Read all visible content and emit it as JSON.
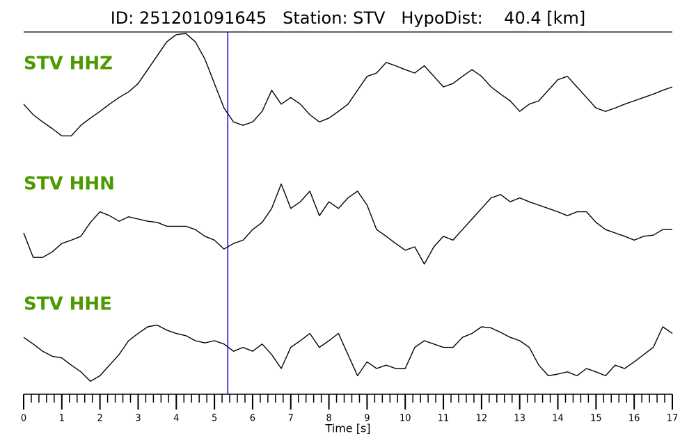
{
  "chart_data": {
    "type": "line",
    "title": "ID: 251201091645   Station: STV   HypoDist:    40.4 [km]",
    "xlabel": "Time [s]",
    "x": [
      0,
      0.25,
      0.5,
      0.75,
      1,
      1.25,
      1.5,
      1.75,
      2,
      2.25,
      2.5,
      2.75,
      3,
      3.25,
      3.5,
      3.75,
      4,
      4.25,
      4.5,
      4.75,
      5,
      5.25,
      5.5,
      5.75,
      6,
      6.25,
      6.5,
      6.75,
      7,
      7.25,
      7.5,
      7.75,
      8,
      8.25,
      8.5,
      8.75,
      9,
      9.25,
      9.5,
      9.75,
      10,
      10.25,
      10.5,
      10.75,
      11,
      11.25,
      11.5,
      11.75,
      12,
      12.25,
      12.5,
      12.75,
      13,
      13.25,
      13.5,
      13.75,
      14,
      14.25,
      14.5,
      14.75,
      15,
      15.25,
      15.5,
      15.75,
      16,
      16.25,
      16.5,
      16.75,
      17
    ],
    "xlim": [
      0,
      17
    ],
    "xticks": [
      0,
      1,
      2,
      3,
      4,
      5,
      6,
      7,
      8,
      9,
      10,
      11,
      12,
      13,
      14,
      15,
      16,
      17
    ],
    "minor_tick_step": 0.2,
    "ylim": [
      -1,
      1
    ],
    "pick_time": 5.35,
    "pick_color": "#0000cc",
    "label_color": "#4c9a00",
    "series": [
      {
        "name": "STV HHZ",
        "color": "#000000",
        "values": [
          -0.31,
          -0.5,
          -0.63,
          -0.75,
          -0.88,
          -0.88,
          -0.69,
          -0.56,
          -0.44,
          -0.31,
          -0.19,
          -0.09,
          0.06,
          0.31,
          0.56,
          0.81,
          0.94,
          0.96,
          0.81,
          0.5,
          0.06,
          -0.38,
          -0.63,
          -0.69,
          -0.63,
          -0.44,
          -0.06,
          -0.31,
          -0.19,
          -0.31,
          -0.5,
          -0.63,
          -0.56,
          -0.44,
          -0.31,
          -0.06,
          0.19,
          0.25,
          0.44,
          0.38,
          0.31,
          0.25,
          0.38,
          0.19,
          0,
          0.06,
          0.19,
          0.31,
          0.19,
          0,
          -0.13,
          -0.25,
          -0.44,
          -0.31,
          -0.25,
          -0.06,
          0.13,
          0.19,
          0,
          -0.19,
          -0.38,
          -0.44,
          -0.38,
          -0.31,
          -0.25,
          -0.19,
          -0.13,
          -0.06,
          0
        ]
      },
      {
        "name": "STV HHN",
        "color": "#000000",
        "values": [
          -0.25,
          -0.69,
          -0.69,
          -0.59,
          -0.44,
          -0.38,
          -0.31,
          -0.06,
          0.13,
          0.06,
          -0.04,
          0.04,
          0,
          -0.04,
          -0.06,
          -0.13,
          -0.13,
          -0.13,
          -0.19,
          -0.31,
          -0.38,
          -0.54,
          -0.44,
          -0.38,
          -0.19,
          -0.06,
          0.19,
          0.63,
          0.19,
          0.31,
          0.5,
          0.06,
          0.31,
          0.19,
          0.38,
          0.5,
          0.25,
          -0.19,
          -0.31,
          -0.44,
          -0.56,
          -0.5,
          -0.81,
          -0.5,
          -0.31,
          -0.38,
          -0.19,
          0,
          0.19,
          0.38,
          0.44,
          0.31,
          0.38,
          0.31,
          0.25,
          0.19,
          0.13,
          0.06,
          0.13,
          0.13,
          -0.06,
          -0.19,
          -0.25,
          -0.31,
          -0.38,
          -0.31,
          -0.29,
          -0.19,
          -0.19
        ]
      },
      {
        "name": "STV HHE",
        "color": "#000000",
        "values": [
          0.31,
          0.19,
          0.06,
          -0.03,
          -0.06,
          -0.19,
          -0.31,
          -0.48,
          -0.38,
          -0.19,
          0,
          0.25,
          0.38,
          0.5,
          0.53,
          0.44,
          0.38,
          0.34,
          0.25,
          0.21,
          0.25,
          0.19,
          0.06,
          0.13,
          0.06,
          0.19,
          0,
          -0.25,
          0.13,
          0.25,
          0.38,
          0.13,
          0.25,
          0.38,
          0,
          -0.38,
          -0.13,
          -0.25,
          -0.19,
          -0.25,
          -0.25,
          0.13,
          0.25,
          0.19,
          0.13,
          0.13,
          0.31,
          0.38,
          0.5,
          0.48,
          0.4,
          0.31,
          0.25,
          0.13,
          -0.19,
          -0.38,
          -0.35,
          -0.31,
          -0.38,
          -0.25,
          -0.31,
          -0.38,
          -0.19,
          -0.25,
          -0.13,
          0,
          0.13,
          0.5,
          0.38
        ]
      }
    ]
  }
}
